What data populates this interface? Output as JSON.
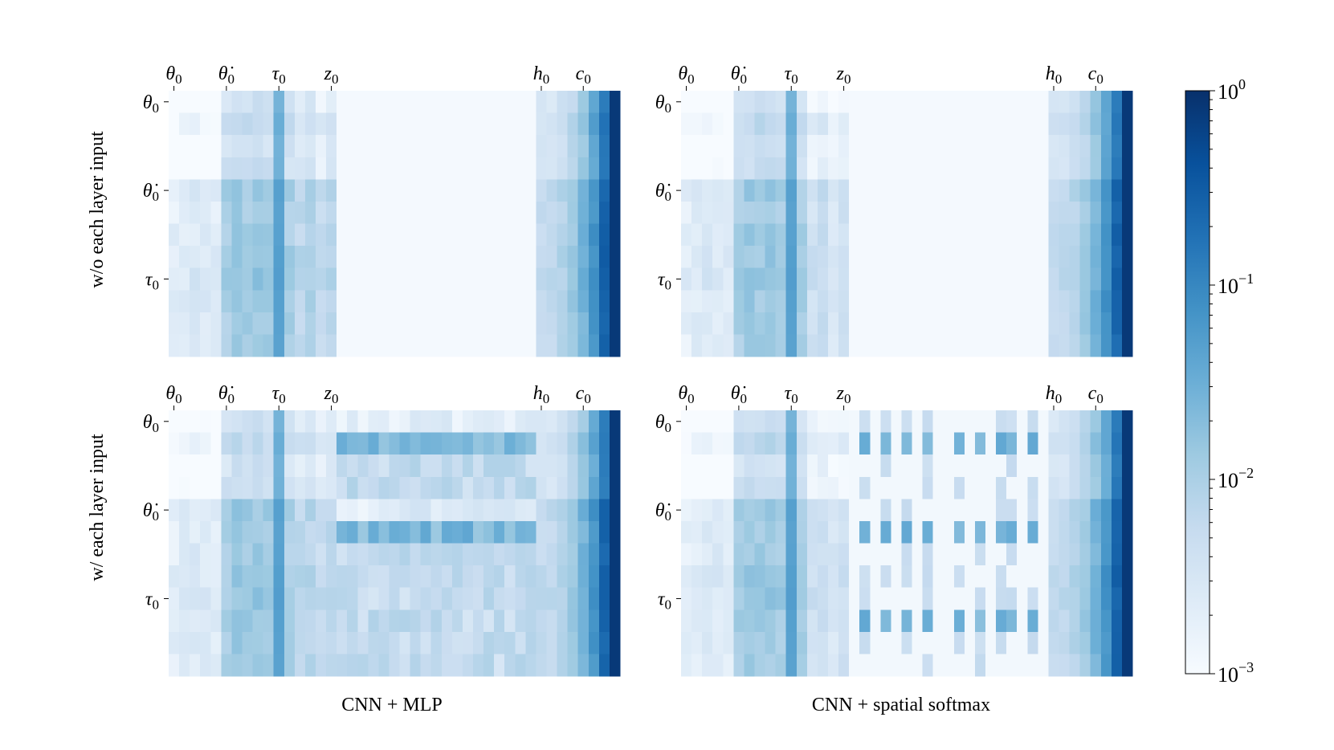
{
  "chart_data": {
    "type": "heatmap",
    "color_scale": {
      "type": "log",
      "range": [
        0.001,
        1
      ],
      "colormap": "Blues",
      "low_color": "#f7fbff",
      "high_color": "#08306b",
      "ticks": [
        {
          "value": 1,
          "base": "10",
          "exp": "0"
        },
        {
          "value": 0.1,
          "base": "10",
          "exp": "−1"
        },
        {
          "value": 0.01,
          "base": "10",
          "exp": "−2"
        },
        {
          "value": 0.001,
          "base": "10",
          "exp": "−3"
        }
      ]
    },
    "row_labels": [
      {
        "base": "θ",
        "sub": "0",
        "dot": false,
        "row": 0
      },
      {
        "base": "θ",
        "sub": "0",
        "dot": true,
        "row": 4
      },
      {
        "base": "τ",
        "sub": "0",
        "dot": false,
        "row": 8
      }
    ],
    "column_labels": [
      {
        "base": "θ",
        "sub": "0",
        "dot": false,
        "col": 0
      },
      {
        "base": "θ",
        "sub": "0",
        "dot": true,
        "col": 5
      },
      {
        "base": "τ",
        "sub": "0",
        "dot": false,
        "col": 10
      },
      {
        "base": "z",
        "sub": "0",
        "dot": false,
        "col": 15
      },
      {
        "base": "h",
        "sub": "0",
        "dot": false,
        "col": 35
      },
      {
        "base": "c",
        "sub": "0",
        "dot": false,
        "col": 39
      }
    ],
    "grid": {
      "rows": 12,
      "cols": 43
    },
    "row_titles": [
      "w/o each layer input",
      "w/ each layer input"
    ],
    "column_titles": [
      "CNN + MLP",
      "CNN + spatial softmax"
    ],
    "panels": [
      {
        "row_title": "w/o each layer input",
        "column_title": "CNN + MLP",
        "hidden_block": "none"
      },
      {
        "row_title": "w/o each layer input",
        "column_title": "CNN + spatial softmax",
        "hidden_block": "none"
      },
      {
        "row_title": "w/ each layer input",
        "column_title": "CNN + MLP",
        "hidden_block": "dense"
      },
      {
        "row_title": "w/ each layer input",
        "column_title": "CNN + spatial softmax",
        "hidden_block": "sparse"
      }
    ]
  }
}
